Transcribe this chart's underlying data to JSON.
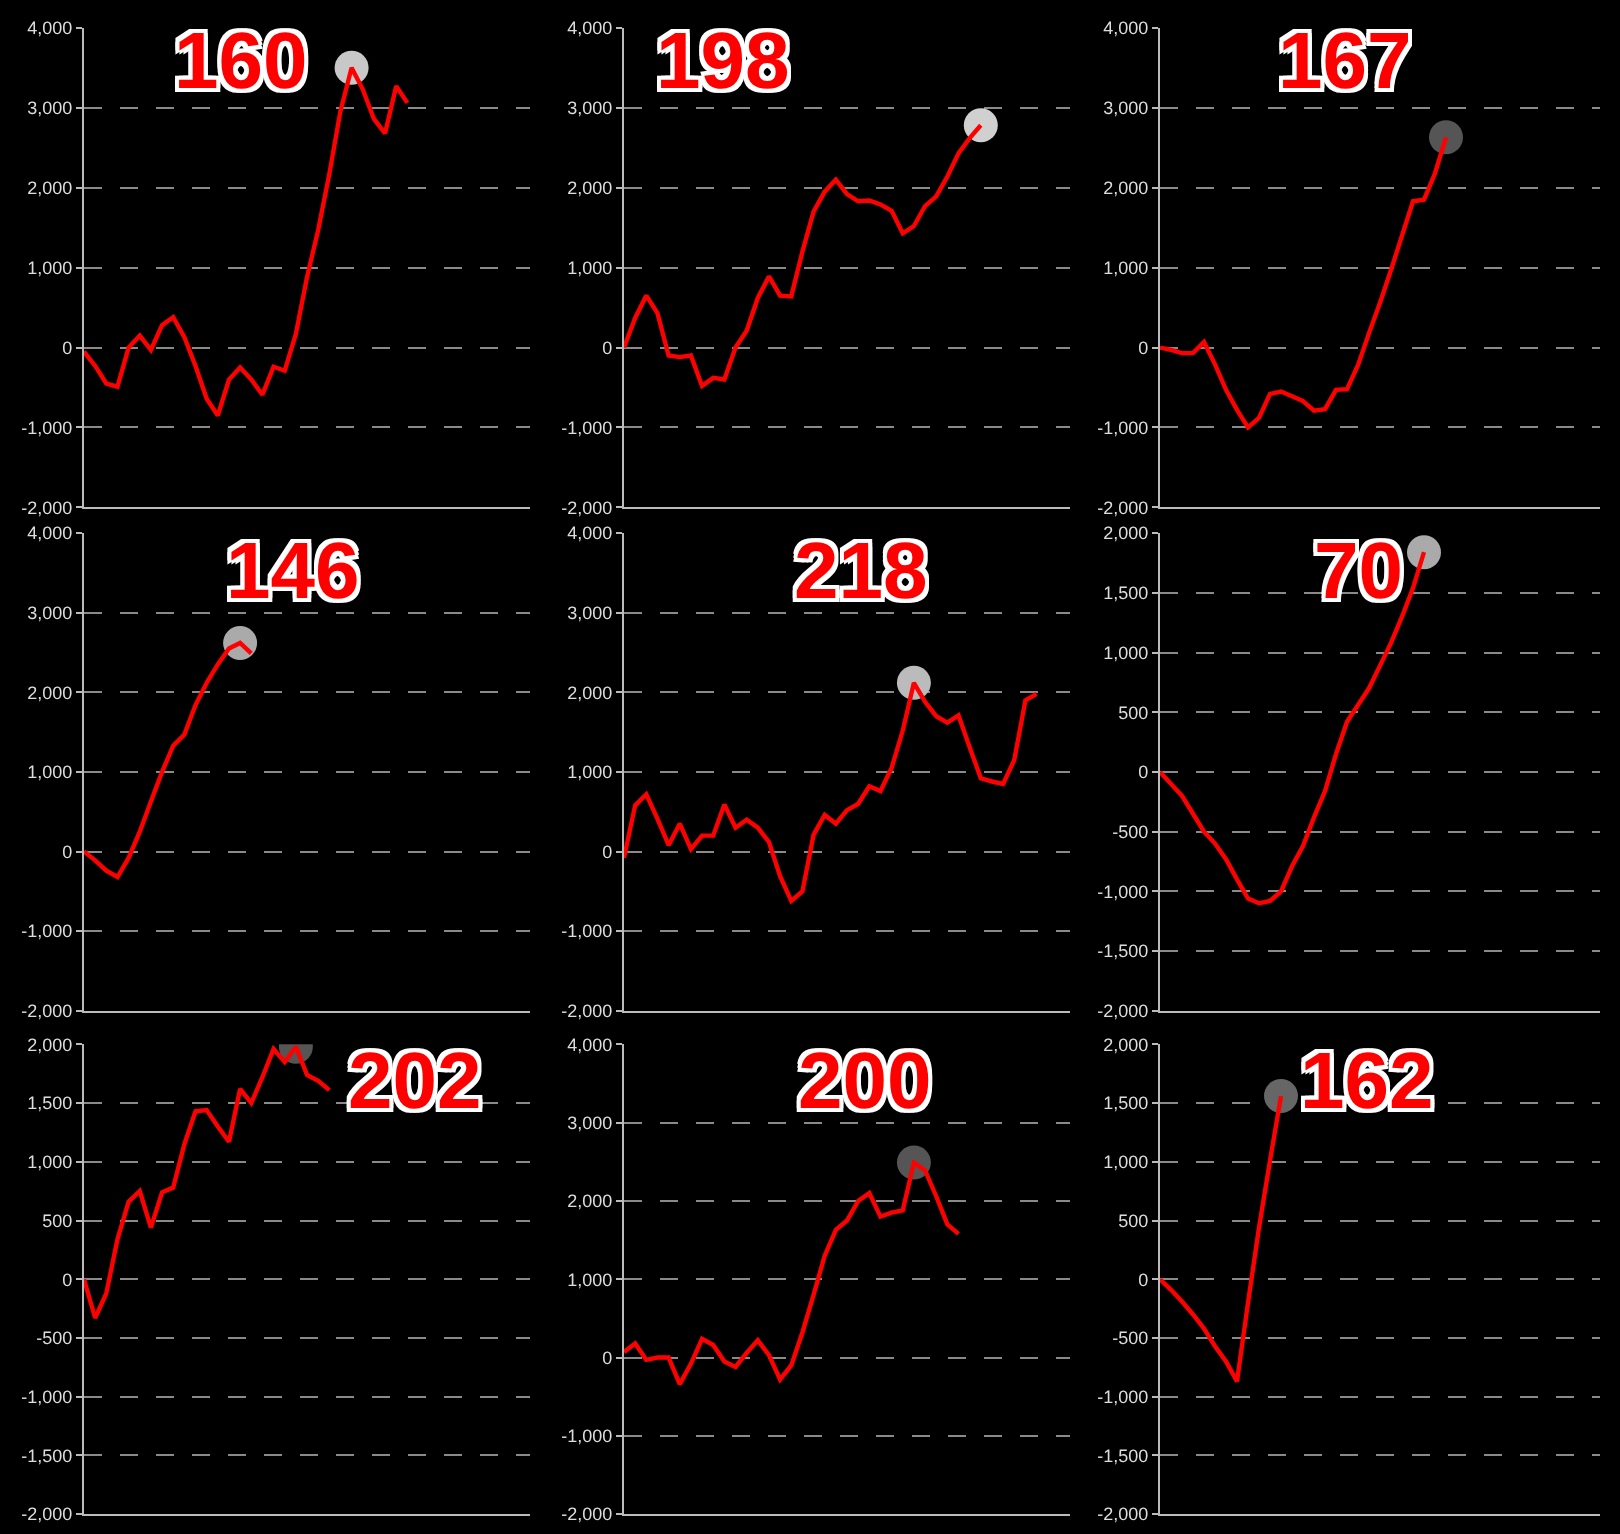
{
  "chart_data": [
    {
      "type": "line",
      "title": "160",
      "grid": "y",
      "ylim": [
        -2000,
        4000
      ],
      "yticks": [
        {
          "value": 4000,
          "label": "4,000"
        },
        {
          "value": 3000,
          "label": "3,000"
        },
        {
          "value": 2000,
          "label": "2,000"
        },
        {
          "value": 1000,
          "label": "1,000"
        },
        0,
        {
          "value": -1000,
          "label": "-1,000"
        },
        {
          "value": -2000,
          "label": "-2,000"
        }
      ],
      "categories": [
        null,
        null,
        null,
        null,
        null,
        null,
        null,
        null,
        null,
        null,
        null,
        null,
        null,
        null,
        null,
        null,
        null,
        null,
        null,
        null,
        null,
        null,
        null,
        null,
        null,
        null,
        null,
        null,
        null,
        null,
        null,
        null,
        null,
        null,
        null,
        null,
        null,
        null,
        null,
        null,
        null
      ],
      "series": [
        {
          "type": "scatter",
          "marker": "circle",
          "color": "#c8c8c8",
          "values": [
            null,
            null,
            null,
            null,
            null,
            null,
            null,
            null,
            null,
            null,
            null,
            null,
            null,
            null,
            null,
            null,
            null,
            null,
            null,
            null,
            null,
            null,
            null,
            null,
            3500,
            null,
            null,
            null,
            null,
            null,
            null,
            null,
            null,
            null,
            null,
            null,
            null,
            null,
            null,
            null,
            null
          ]
        },
        {
          "type": "line",
          "color": "#ff0000",
          "values": [
            -50,
            -230,
            -450,
            -490,
            0,
            150,
            -30,
            280,
            380,
            130,
            -230,
            -640,
            -850,
            -400,
            -250,
            -400,
            -590,
            -240,
            -290,
            170,
            880,
            1470,
            2170,
            2960,
            3500,
            3230,
            2860,
            2680,
            3270,
            3060,
            null,
            null,
            null,
            null,
            null,
            null,
            null,
            null,
            null,
            null,
            null
          ]
        }
      ]
    },
    {
      "type": "line",
      "title": "198",
      "grid": "y",
      "ylim": [
        -2000,
        4000
      ],
      "yticks": [
        {
          "value": 4000,
          "label": "4,000"
        },
        {
          "value": 3000,
          "label": "3,000"
        },
        {
          "value": 2000,
          "label": "2,000"
        },
        {
          "value": 1000,
          "label": "1,000"
        },
        0,
        {
          "value": -1000,
          "label": "-1,000"
        },
        {
          "value": -2000,
          "label": "-2,000"
        }
      ],
      "categories": [
        null,
        null,
        null,
        null,
        null,
        null,
        null,
        null,
        null,
        null,
        null,
        null,
        null,
        null,
        null,
        null,
        null,
        null,
        null,
        null,
        null,
        null,
        null,
        null,
        null,
        null,
        null,
        null,
        null,
        null,
        null,
        null,
        null,
        null,
        null,
        null,
        null,
        null,
        null,
        null,
        null
      ],
      "series": [
        {
          "type": "scatter",
          "marker": "circle",
          "color": "#d0d0d0",
          "values": [
            null,
            null,
            null,
            null,
            null,
            null,
            null,
            null,
            null,
            null,
            null,
            null,
            null,
            null,
            null,
            null,
            null,
            null,
            null,
            null,
            null,
            null,
            null,
            null,
            null,
            null,
            null,
            null,
            null,
            null,
            null,
            null,
            2780,
            null,
            null,
            null,
            null,
            null,
            null,
            null,
            null
          ]
        },
        {
          "type": "line",
          "color": "#ff0000",
          "values": [
            0,
            370,
            650,
            430,
            -100,
            -120,
            -100,
            -480,
            -380,
            -400,
            0,
            210,
            620,
            890,
            650,
            640,
            1200,
            1700,
            1950,
            2100,
            1920,
            1830,
            1840,
            1790,
            1710,
            1430,
            1520,
            1770,
            1890,
            2140,
            2430,
            2620,
            2780,
            null,
            null,
            null,
            null,
            null,
            null,
            null,
            null
          ]
        }
      ]
    },
    {
      "type": "line",
      "title": "167",
      "grid": "y",
      "ylim": [
        -2000,
        4000
      ],
      "yticks": [
        {
          "value": 4000,
          "label": "4,000"
        },
        {
          "value": 3000,
          "label": "3,000"
        },
        {
          "value": 2000,
          "label": "2,000"
        },
        {
          "value": 1000,
          "label": "1,000"
        },
        0,
        {
          "value": -1000,
          "label": "-1,000"
        },
        {
          "value": -2000,
          "label": "-2,000"
        }
      ],
      "categories": [
        null,
        null,
        null,
        null,
        null,
        null,
        null,
        null,
        null,
        null,
        null,
        null,
        null,
        null,
        null,
        null,
        null,
        null,
        null,
        null,
        null,
        null,
        null,
        null,
        null,
        null,
        null,
        null,
        null,
        null,
        null,
        null,
        null,
        null,
        null,
        null,
        null,
        null,
        null,
        null,
        null
      ],
      "series": [
        {
          "type": "scatter",
          "marker": "circle",
          "color": "#555555",
          "values": [
            null,
            null,
            null,
            null,
            null,
            null,
            null,
            null,
            null,
            null,
            null,
            null,
            null,
            null,
            null,
            null,
            null,
            null,
            null,
            null,
            null,
            null,
            null,
            null,
            null,
            null,
            2630,
            null,
            null,
            null,
            null,
            null,
            null,
            null,
            null,
            null,
            null,
            null,
            null,
            null,
            null
          ]
        },
        {
          "type": "line",
          "color": "#ff0000",
          "values": [
            0,
            -30,
            -70,
            -70,
            70,
            -210,
            -530,
            -780,
            -1000,
            -880,
            -580,
            -550,
            -610,
            -670,
            -790,
            -770,
            -530,
            -520,
            -220,
            180,
            560,
            970,
            1400,
            1830,
            1850,
            2180,
            2630,
            null,
            null,
            null,
            null,
            null,
            null,
            null,
            null,
            null,
            null,
            null,
            null,
            null,
            null
          ]
        }
      ]
    },
    {
      "type": "line",
      "title": "146",
      "grid": "y",
      "ylim": [
        -2000,
        4000
      ],
      "yticks": [
        {
          "value": 4000,
          "label": "4,000"
        },
        {
          "value": 3000,
          "label": "3,000"
        },
        {
          "value": 2000,
          "label": "2,000"
        },
        {
          "value": 1000,
          "label": "1,000"
        },
        0,
        {
          "value": -1000,
          "label": "-1,000"
        },
        {
          "value": -2000,
          "label": "-2,000"
        }
      ],
      "categories": [
        null,
        null,
        null,
        null,
        null,
        null,
        null,
        null,
        null,
        null,
        null,
        null,
        null,
        null,
        null,
        null,
        null,
        null,
        null,
        null,
        null,
        null,
        null,
        null,
        null,
        null,
        null,
        null,
        null,
        null,
        null,
        null,
        null,
        null,
        null,
        null,
        null,
        null,
        null,
        null,
        null
      ],
      "series": [
        {
          "type": "scatter",
          "marker": "circle",
          "color": "#aaaaaa",
          "values": [
            null,
            null,
            null,
            null,
            null,
            null,
            null,
            null,
            null,
            null,
            null,
            null,
            null,
            null,
            2620,
            null,
            null,
            null,
            null,
            null,
            null,
            null,
            null,
            null,
            null,
            null,
            null,
            null,
            null,
            null,
            null,
            null,
            null,
            null,
            null,
            null,
            null,
            null,
            null,
            null,
            null
          ]
        },
        {
          "type": "line",
          "color": "#ff0000",
          "values": [
            0,
            -110,
            -240,
            -320,
            -80,
            250,
            630,
            1000,
            1330,
            1470,
            1840,
            2120,
            2350,
            2550,
            2620,
            2490,
            null,
            null,
            null,
            null,
            null,
            null,
            null,
            null,
            null,
            null,
            null,
            null,
            null,
            null,
            null,
            null,
            null,
            null,
            null,
            null,
            null,
            null,
            null,
            null,
            null
          ]
        }
      ]
    },
    {
      "type": "line",
      "title": "218",
      "grid": "y",
      "ylim": [
        -2000,
        4000
      ],
      "yticks": [
        {
          "value": 4000,
          "label": "4,000"
        },
        {
          "value": 3000,
          "label": "3,000"
        },
        {
          "value": 2000,
          "label": "2,000"
        },
        {
          "value": 1000,
          "label": "1,000"
        },
        0,
        {
          "value": -1000,
          "label": "-1,000"
        },
        {
          "value": -2000,
          "label": "-2,000"
        }
      ],
      "categories": [
        null,
        null,
        null,
        null,
        null,
        null,
        null,
        null,
        null,
        null,
        null,
        null,
        null,
        null,
        null,
        null,
        null,
        null,
        null,
        null,
        null,
        null,
        null,
        null,
        null,
        null,
        null,
        null,
        null,
        null,
        null,
        null,
        null,
        null,
        null,
        null,
        null,
        null,
        null,
        null,
        null
      ],
      "series": [
        {
          "type": "scatter",
          "marker": "circle",
          "color": "#bbbbbb",
          "values": [
            null,
            null,
            null,
            null,
            null,
            null,
            null,
            null,
            null,
            null,
            null,
            null,
            null,
            null,
            null,
            null,
            null,
            null,
            null,
            null,
            null,
            null,
            null,
            null,
            null,
            null,
            2120,
            null,
            null,
            null,
            null,
            null,
            null,
            null,
            null,
            null,
            null,
            null,
            null,
            null,
            null
          ]
        },
        {
          "type": "line",
          "color": "#ff0000",
          "values": [
            -80,
            580,
            720,
            410,
            80,
            350,
            30,
            200,
            200,
            590,
            300,
            400,
            300,
            120,
            -310,
            -620,
            -500,
            210,
            460,
            350,
            520,
            600,
            820,
            760,
            1050,
            1520,
            2120,
            1880,
            1700,
            1620,
            1710,
            1310,
            920,
            880,
            850,
            1150,
            1900,
            1980,
            null,
            null,
            null
          ]
        }
      ]
    },
    {
      "type": "line",
      "title": "70",
      "grid": "y",
      "ylim": [
        -2000,
        2000
      ],
      "yticks": [
        {
          "value": 2000,
          "label": "2,000"
        },
        {
          "value": 1500,
          "label": "1,500"
        },
        {
          "value": 1000,
          "label": "1,000"
        },
        500,
        0,
        -500,
        {
          "value": -1000,
          "label": "-1,000"
        },
        {
          "value": -1500,
          "label": "-1,500"
        },
        {
          "value": -2000,
          "label": "-2,000"
        }
      ],
      "categories": [
        null,
        null,
        null,
        null,
        null,
        null,
        null,
        null,
        null,
        null,
        null,
        null,
        null,
        null,
        null,
        null,
        null,
        null,
        null,
        null,
        null,
        null,
        null,
        null,
        null,
        null,
        null,
        null,
        null,
        null,
        null,
        null,
        null,
        null,
        null,
        null,
        null,
        null,
        null,
        null,
        null
      ],
      "series": [
        {
          "type": "scatter",
          "marker": "circle",
          "color": "#aaaaaa",
          "values": [
            null,
            null,
            null,
            null,
            null,
            null,
            null,
            null,
            null,
            null,
            null,
            null,
            null,
            null,
            null,
            null,
            null,
            null,
            null,
            null,
            null,
            null,
            null,
            null,
            1840,
            null,
            null,
            null,
            null,
            null,
            null,
            null,
            null,
            null,
            null,
            null,
            null,
            null,
            null,
            null,
            null
          ]
        },
        {
          "type": "line",
          "color": "#ff0000",
          "values": [
            0,
            -100,
            -200,
            -350,
            -500,
            -600,
            -730,
            -900,
            -1060,
            -1100,
            -1080,
            -1000,
            -790,
            -620,
            -380,
            -160,
            150,
            420,
            560,
            700,
            890,
            1080,
            1300,
            1540,
            1840,
            null,
            null,
            null,
            null,
            null,
            null,
            null,
            null,
            null,
            null,
            null,
            null,
            null,
            null,
            null,
            null
          ]
        }
      ]
    },
    {
      "type": "line",
      "title": "202",
      "grid": "y",
      "ylim": [
        -2000,
        2000
      ],
      "yticks": [
        {
          "value": 2000,
          "label": "2,000"
        },
        {
          "value": 1500,
          "label": "1,500"
        },
        {
          "value": 1000,
          "label": "1,000"
        },
        500,
        0,
        -500,
        {
          "value": -1000,
          "label": "-1,000"
        },
        {
          "value": -1500,
          "label": "-1,500"
        },
        {
          "value": -2000,
          "label": "-2,000"
        }
      ],
      "categories": [
        null,
        null,
        null,
        null,
        null,
        null,
        null,
        null,
        null,
        null,
        null,
        null,
        null,
        null,
        null,
        null,
        null,
        null,
        null,
        null,
        null,
        null,
        null,
        null,
        null,
        null,
        null,
        null,
        null,
        null,
        null,
        null,
        null,
        null,
        null,
        null,
        null,
        null,
        null,
        null,
        null
      ],
      "series": [
        {
          "type": "scatter",
          "marker": "circle",
          "color": "#555555",
          "values": [
            null,
            null,
            null,
            null,
            null,
            null,
            null,
            null,
            null,
            null,
            null,
            null,
            null,
            null,
            null,
            null,
            null,
            null,
            null,
            1980,
            null,
            null,
            null,
            null,
            null,
            null,
            null,
            null,
            null,
            null,
            null,
            null,
            null,
            null,
            null,
            null,
            null,
            null,
            null,
            null,
            null
          ]
        },
        {
          "type": "line",
          "color": "#ff0000",
          "values": [
            0,
            -330,
            -120,
            340,
            660,
            750,
            440,
            740,
            780,
            1150,
            1430,
            1440,
            1300,
            1170,
            1620,
            1500,
            1720,
            1960,
            1850,
            1980,
            1740,
            1690,
            1610,
            null,
            null,
            null,
            null,
            null,
            null,
            null,
            null,
            null,
            null,
            null,
            null,
            null,
            null,
            null,
            null,
            null,
            null
          ]
        }
      ]
    },
    {
      "type": "line",
      "title": "200",
      "grid": "y",
      "ylim": [
        -2000,
        4000
      ],
      "yticks": [
        {
          "value": 4000,
          "label": "4,000"
        },
        {
          "value": 3000,
          "label": "3,000"
        },
        {
          "value": 2000,
          "label": "2,000"
        },
        {
          "value": 1000,
          "label": "1,000"
        },
        0,
        {
          "value": -1000,
          "label": "-1,000"
        },
        {
          "value": -2000,
          "label": "-2,000"
        }
      ],
      "categories": [
        null,
        null,
        null,
        null,
        null,
        null,
        null,
        null,
        null,
        null,
        null,
        null,
        null,
        null,
        null,
        null,
        null,
        null,
        null,
        null,
        null,
        null,
        null,
        null,
        null,
        null,
        null,
        null,
        null,
        null,
        null,
        null,
        null,
        null,
        null,
        null,
        null,
        null,
        null,
        null,
        null
      ],
      "series": [
        {
          "type": "scatter",
          "marker": "circle",
          "color": "#555555",
          "values": [
            null,
            null,
            null,
            null,
            null,
            null,
            null,
            null,
            null,
            null,
            null,
            null,
            null,
            null,
            null,
            null,
            null,
            null,
            null,
            null,
            null,
            null,
            null,
            null,
            null,
            null,
            2490,
            null,
            null,
            null,
            null,
            null,
            null,
            null,
            null,
            null,
            null,
            null,
            null,
            null,
            null
          ]
        },
        {
          "type": "line",
          "color": "#ff0000",
          "values": [
            70,
            180,
            -30,
            0,
            0,
            -340,
            -80,
            240,
            160,
            -50,
            -120,
            60,
            220,
            30,
            -280,
            -100,
            320,
            800,
            1300,
            1630,
            1750,
            2000,
            2100,
            1800,
            1850,
            1880,
            2490,
            2390,
            2060,
            1700,
            1580,
            null,
            null,
            null,
            null,
            null,
            null,
            null,
            null,
            null,
            null
          ]
        }
      ]
    },
    {
      "type": "line",
      "title": "162",
      "grid": "y",
      "ylim": [
        -2000,
        2000
      ],
      "yticks": [
        {
          "value": 2000,
          "label": "2,000"
        },
        {
          "value": 1500,
          "label": "1,500"
        },
        {
          "value": 1000,
          "label": "1,000"
        },
        500,
        0,
        -500,
        {
          "value": -1000,
          "label": "-1,000"
        },
        {
          "value": -1500,
          "label": "-1,500"
        },
        {
          "value": -2000,
          "label": "-2,000"
        }
      ],
      "categories": [
        null,
        null,
        null,
        null,
        null,
        null,
        null,
        null,
        null,
        null,
        null,
        null,
        null,
        null,
        null,
        null,
        null,
        null,
        null,
        null,
        null,
        null,
        null,
        null,
        null,
        null,
        null,
        null,
        null,
        null,
        null,
        null,
        null,
        null,
        null,
        null,
        null,
        null,
        null,
        null,
        null
      ],
      "series": [
        {
          "type": "scatter",
          "marker": "circle",
          "color": "#666666",
          "values": [
            null,
            null,
            null,
            null,
            null,
            null,
            null,
            null,
            null,
            null,
            null,
            1560,
            null,
            null,
            null,
            null,
            null,
            null,
            null,
            null,
            null,
            null,
            null,
            null,
            null,
            null,
            null,
            null,
            null,
            null,
            null,
            null,
            null,
            null,
            null,
            null,
            null,
            null,
            null,
            null,
            null
          ]
        },
        {
          "type": "line",
          "color": "#ff0000",
          "values": [
            0,
            -90,
            -190,
            -300,
            -420,
            -570,
            -700,
            -870,
            -200,
            440,
            1010,
            1560,
            null,
            null,
            null,
            null,
            null,
            null,
            null,
            null,
            null,
            null,
            null,
            null,
            null,
            null,
            null,
            null,
            null,
            null,
            null,
            null,
            null,
            null,
            null,
            null,
            null,
            null,
            null,
            null,
            null
          ]
        }
      ]
    }
  ]
}
